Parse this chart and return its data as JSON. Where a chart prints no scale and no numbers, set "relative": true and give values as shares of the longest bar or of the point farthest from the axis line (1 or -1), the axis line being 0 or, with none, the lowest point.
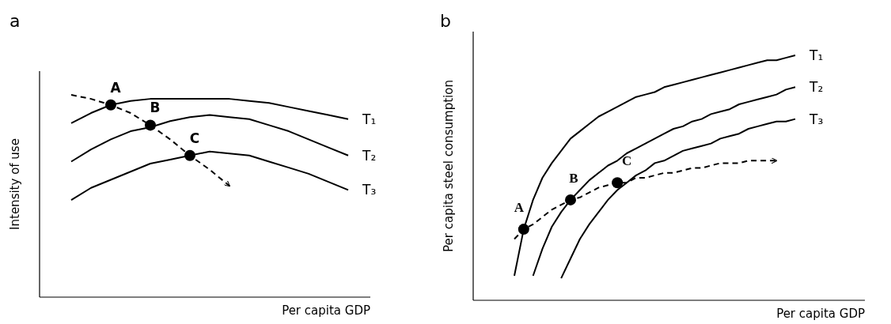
{
  "chart_data": [
    {
      "type": "line",
      "title": "a",
      "xlabel": "Per capita GDP",
      "ylabel": "Intensity of use",
      "relative": true,
      "legend": false,
      "marker": "none",
      "categories": [
        null,
        null,
        null,
        null,
        null,
        null,
        null,
        null,
        null,
        null,
        null,
        null,
        null,
        null,
        null
      ],
      "series": [
        {
          "name": "T₁",
          "color": "#000000",
          "line_style": "solid",
          "values": [
            0.86,
            0.91,
            0.95,
            0.97,
            0.98,
            0.98,
            0.98,
            0.98,
            0.98,
            0.97,
            0.96,
            0.94,
            0.92,
            0.9,
            0.88
          ]
        },
        {
          "name": "T₂",
          "color": "#000000",
          "line_style": "solid",
          "values": [
            0.67,
            0.73,
            0.78,
            0.82,
            0.84,
            0.87,
            0.89,
            0.9,
            0.89,
            0.88,
            0.85,
            0.82,
            0.78,
            0.74,
            0.7
          ]
        },
        {
          "name": "T₃",
          "color": "#000000",
          "line_style": "solid",
          "values": [
            0.48,
            0.54,
            0.58,
            0.62,
            0.66,
            0.68,
            0.7,
            0.72,
            0.71,
            0.7,
            0.67,
            0.64,
            0.61,
            0.57,
            0.53
          ]
        },
        {
          "color": "#000000",
          "line_style": "dashed",
          "values": [
            1.0,
            0.98,
            0.95,
            0.91,
            0.85,
            0.78,
            0.7,
            0.63,
            0.55,
            null,
            null,
            null,
            null,
            null,
            null
          ]
        }
      ],
      "annotations": [
        {
          "text": "A",
          "y": 0.95
        },
        {
          "text": "B",
          "y": 0.85
        },
        {
          "text": "C",
          "y": 0.7
        }
      ]
    },
    {
      "type": "line",
      "title": "b",
      "xlabel": "Per capita GDP",
      "ylabel": "Per capita steel consumption",
      "relative": true,
      "legend": false,
      "marker": "none",
      "categories": [
        null,
        null,
        null,
        null,
        null,
        null,
        null,
        null,
        null,
        null,
        null,
        null,
        null,
        null,
        null,
        null,
        null,
        null,
        null,
        null,
        null,
        null,
        null,
        null,
        null,
        null,
        null,
        null,
        null,
        null,
        null
      ],
      "series": [
        {
          "name": "T₁",
          "color": "#000000",
          "line_style": "solid",
          "values": [
            0.1,
            0.29,
            0.41,
            0.5,
            0.56,
            0.61,
            0.66,
            0.69,
            0.72,
            0.75,
            0.77,
            0.79,
            0.81,
            0.83,
            0.84,
            0.85,
            0.87,
            0.88,
            0.89,
            0.9,
            0.91,
            0.92,
            0.93,
            0.94,
            0.95,
            0.96,
            0.97,
            0.98,
            0.98,
            0.99,
            1.0
          ]
        },
        {
          "name": "T₂",
          "color": "#000000",
          "line_style": "solid",
          "values": [
            null,
            null,
            0.1,
            0.21,
            0.3,
            0.36,
            0.41,
            0.45,
            0.49,
            0.52,
            0.55,
            0.57,
            0.6,
            0.62,
            0.64,
            0.66,
            0.68,
            0.7,
            0.71,
            0.73,
            0.74,
            0.76,
            0.77,
            0.78,
            0.8,
            0.81,
            0.82,
            0.83,
            0.84,
            0.86,
            0.87
          ]
        },
        {
          "name": "T₃",
          "color": "#000000",
          "line_style": "solid",
          "values": [
            null,
            null,
            null,
            null,
            null,
            0.09,
            0.17,
            0.25,
            0.31,
            0.36,
            0.41,
            0.45,
            0.48,
            0.51,
            0.53,
            0.56,
            0.57,
            0.59,
            0.61,
            0.62,
            0.63,
            0.64,
            0.66,
            0.67,
            0.68,
            0.7,
            0.71,
            0.72,
            0.73,
            0.73,
            0.74
          ]
        },
        {
          "color": "#000000",
          "line_style": "dashed",
          "values": [
            0.25,
            0.29,
            0.31,
            0.34,
            0.37,
            0.39,
            0.41,
            0.42,
            0.44,
            0.46,
            0.47,
            0.48,
            0.48,
            0.5,
            0.5,
            0.51,
            0.52,
            0.52,
            0.53,
            0.54,
            0.54,
            0.55,
            0.56,
            0.56,
            0.56,
            0.57,
            0.57,
            0.57,
            0.57,
            null,
            null
          ]
        }
      ],
      "annotations": [
        {
          "text": "A",
          "y": 0.29
        },
        {
          "text": "B",
          "y": 0.41
        },
        {
          "text": "C",
          "y": 0.48
        }
      ]
    }
  ]
}
